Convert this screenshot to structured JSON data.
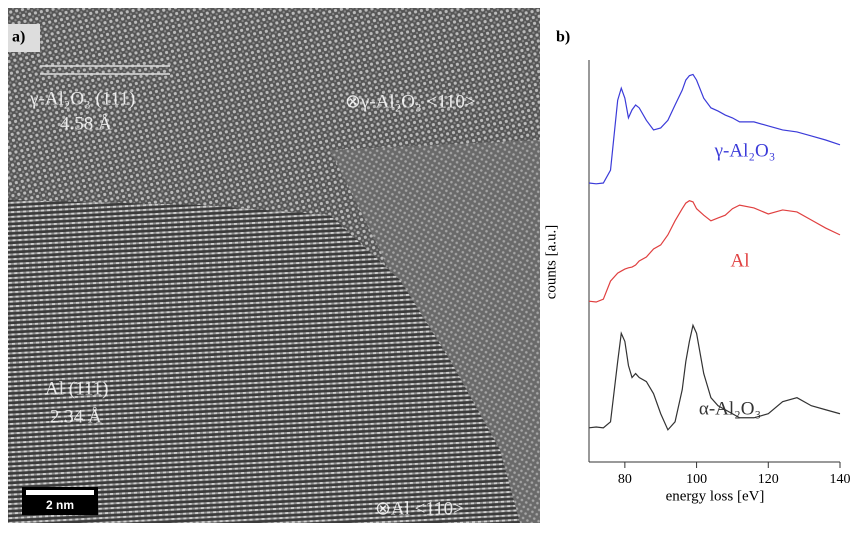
{
  "image_panel": {
    "label": "a)",
    "annotations": {
      "gamma_plane": "γ-Al₂O₃ (111)",
      "gamma_spacing": "4.58 Å",
      "gamma_zone": "⊗γ-Al₂O₃ <110>",
      "al_plane": "Al (111)",
      "al_spacing": "2.34 Å",
      "al_zone": "⊗Al <110>"
    },
    "scale_bar": "2 nm"
  },
  "chart_data": {
    "type": "line",
    "panel_label": "b)",
    "x_label": "energy loss [eV]",
    "y_label": "counts [a.u.]",
    "x": [
      70,
      72,
      74,
      76,
      78,
      79,
      80,
      81,
      82,
      83,
      84,
      86,
      88,
      90,
      92,
      94,
      96,
      97,
      98,
      99,
      100,
      102,
      104,
      106,
      108,
      110,
      112,
      116,
      120,
      124,
      128,
      132,
      136,
      140
    ],
    "series": [
      {
        "name": "γ-Al₂O₃",
        "color": "#3b3bd9",
        "values": [
          69.4,
          69.2,
          69.4,
          72.6,
          90,
          93,
          90.5,
          85.6,
          87.6,
          88.8,
          88.1,
          85,
          82.6,
          83.1,
          85,
          88.8,
          92.5,
          95,
          96.1,
          96.4,
          95,
          90.5,
          88.1,
          87.3,
          86.3,
          85.6,
          84.6,
          84.6,
          83.6,
          82.6,
          82.1,
          81.1,
          80.1,
          78.9
        ]
      },
      {
        "name": "Al",
        "color": "#e04040",
        "values": [
          40,
          39.8,
          40.5,
          45,
          47,
          47.5,
          48,
          48.3,
          48.5,
          49,
          50,
          51,
          53,
          54,
          56.5,
          60,
          63,
          64.4,
          65,
          64.7,
          63,
          61.4,
          60,
          60.7,
          61.4,
          63,
          63.9,
          63.2,
          61.7,
          62.7,
          62.2,
          60.2,
          58.2,
          56.5
        ]
      },
      {
        "name": "α-Al₂O₃",
        "color": "#333333",
        "values": [
          8.5,
          8.7,
          8.5,
          10,
          25,
          32,
          30,
          24,
          21,
          22,
          21,
          20,
          17,
          12,
          8,
          10,
          18,
          25,
          30,
          34,
          32,
          22,
          16,
          14,
          13,
          12,
          11,
          11,
          12,
          15,
          16,
          14,
          13,
          12
        ]
      }
    ],
    "xlim": [
      70,
      140
    ],
    "xticks": [
      80,
      100,
      120,
      140
    ],
    "ylim": [
      0,
      100
    ]
  }
}
